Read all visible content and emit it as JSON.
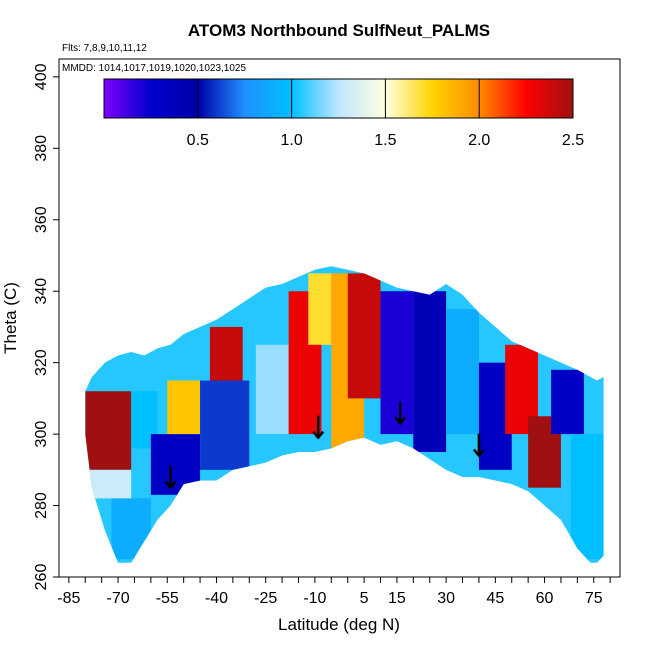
{
  "chart_data": {
    "type": "heatmap",
    "title": "ATOM3 Northbound SulfNeut_PALMS",
    "flights_label": "Flts: 7,8,9,10,11,12",
    "dates_label": "MMDD: 1014,1017,1019,1020,1023,1025",
    "xlabel": "Latitude (deg N)",
    "ylabel": "Theta (C)",
    "xlim": [
      -88,
      83
    ],
    "ylim": [
      260,
      405
    ],
    "x_ticks": [
      -85,
      -70,
      -55,
      -40,
      -25,
      -10,
      5,
      15,
      30,
      45,
      60,
      75
    ],
    "y_ticks": [
      260,
      280,
      300,
      320,
      340,
      360,
      380,
      400
    ],
    "colorbar": {
      "min": 0.0,
      "max": 2.5,
      "ticks": [
        0.5,
        1.0,
        1.5,
        2.0,
        2.5
      ],
      "tick_labels": [
        "0.5",
        "1.0",
        "1.5",
        "2.0",
        "2.5"
      ],
      "colors": [
        "#7f00ff",
        "#0000cc",
        "#0000aa",
        "#1e90ff",
        "#00bfff",
        "#bfe6ff",
        "#ffffe0",
        "#ffd400",
        "#ff8c00",
        "#ff0000",
        "#a01010"
      ]
    },
    "coverage_outline": {
      "lat": [
        -80,
        -78,
        -74,
        -70,
        -66,
        -62,
        -58,
        -54,
        -50,
        -45,
        -40,
        -35,
        -30,
        -25,
        -20,
        -15,
        -10,
        -5,
        0,
        5,
        10,
        15,
        20,
        25,
        30,
        35,
        40,
        45,
        50,
        55,
        60,
        65,
        70,
        74,
        76,
        78
      ],
      "theta_bottom": [
        300,
        285,
        273,
        264,
        264,
        270,
        276,
        280,
        286,
        287,
        287,
        290,
        291,
        292,
        294,
        295,
        295,
        296,
        298,
        299,
        297,
        298,
        296,
        293,
        290,
        288,
        288,
        287,
        286,
        284,
        280,
        276,
        268,
        264,
        264,
        266
      ],
      "theta_top": [
        312,
        316,
        320,
        322,
        323,
        322,
        324,
        325,
        328,
        330,
        332,
        335,
        338,
        341,
        342,
        344,
        346,
        347,
        346,
        345,
        343,
        341,
        340,
        339,
        342,
        339,
        334,
        330,
        326,
        324,
        322,
        320,
        318,
        316,
        315,
        316
      ]
    },
    "regions": [
      {
        "lat": [
          -80,
          -66
        ],
        "theta": [
          290,
          312
        ],
        "value": 2.5
      },
      {
        "lat": [
          -66,
          -58
        ],
        "theta": [
          296,
          312
        ],
        "value": 1.0
      },
      {
        "lat": [
          -80,
          -66
        ],
        "theta": [
          282,
          290
        ],
        "value": 1.3
      },
      {
        "lat": [
          -72,
          -60
        ],
        "theta": [
          265,
          282
        ],
        "value": 0.9
      },
      {
        "lat": [
          -60,
          -45
        ],
        "theta": [
          283,
          300
        ],
        "value": 0.3
      },
      {
        "lat": [
          -55,
          -45
        ],
        "theta": [
          300,
          315
        ],
        "value": 1.8
      },
      {
        "lat": [
          -45,
          -30
        ],
        "theta": [
          290,
          315
        ],
        "value": 0.6
      },
      {
        "lat": [
          -42,
          -32
        ],
        "theta": [
          315,
          330
        ],
        "value": 2.4
      },
      {
        "lat": [
          -28,
          -18
        ],
        "theta": [
          300,
          325
        ],
        "value": 1.2
      },
      {
        "lat": [
          -18,
          -8
        ],
        "theta": [
          300,
          340
        ],
        "value": 2.3
      },
      {
        "lat": [
          -12,
          -5
        ],
        "theta": [
          325,
          345
        ],
        "value": 1.7
      },
      {
        "lat": [
          -5,
          5
        ],
        "theta": [
          296,
          345
        ],
        "value": 1.9
      },
      {
        "lat": [
          0,
          10
        ],
        "theta": [
          310,
          345
        ],
        "value": 2.4
      },
      {
        "lat": [
          10,
          20
        ],
        "theta": [
          300,
          340
        ],
        "value": 0.2
      },
      {
        "lat": [
          20,
          30
        ],
        "theta": [
          295,
          340
        ],
        "value": 0.4
      },
      {
        "lat": [
          30,
          40
        ],
        "theta": [
          300,
          335
        ],
        "value": 0.9
      },
      {
        "lat": [
          40,
          50
        ],
        "theta": [
          290,
          320
        ],
        "value": 0.3
      },
      {
        "lat": [
          48,
          58
        ],
        "theta": [
          300,
          325
        ],
        "value": 2.3
      },
      {
        "lat": [
          55,
          65
        ],
        "theta": [
          285,
          305
        ],
        "value": 2.5
      },
      {
        "lat": [
          62,
          72
        ],
        "theta": [
          300,
          318
        ],
        "value": 0.3
      },
      {
        "lat": [
          68,
          78
        ],
        "theta": [
          265,
          300
        ],
        "value": 1.0
      }
    ],
    "arrows_lat": [
      -54,
      -9,
      16,
      40
    ],
    "arrows_theta": [
      285,
      299,
      303,
      294
    ]
  }
}
